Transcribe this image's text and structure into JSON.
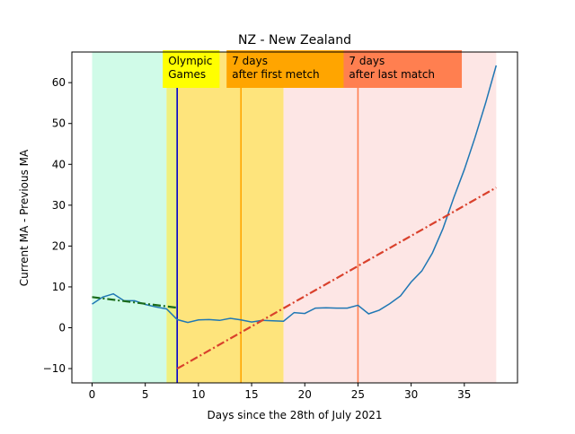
{
  "chart_data": {
    "type": "line",
    "title": "NZ - New Zealand",
    "xlabel": "Days since the 28th of July 2021",
    "ylabel": "Current MA - Previous MA",
    "xlim": [
      -1.9,
      40.0
    ],
    "ylim": [
      -13.5,
      67.5
    ],
    "xticks": [
      0,
      5,
      10,
      15,
      20,
      25,
      30,
      35
    ],
    "yticks": [
      -10,
      0,
      10,
      20,
      30,
      40,
      50,
      60
    ],
    "grid": false,
    "bands": [
      {
        "x0": 0,
        "x1": 7,
        "color": "#d0fbe8"
      },
      {
        "x0": 7,
        "x1": 8,
        "color": "#eef07f"
      },
      {
        "x0": 8,
        "x1": 18,
        "color": "#fee47c"
      },
      {
        "x0": 18,
        "x1": 38,
        "color": "#fde6e5"
      }
    ],
    "vlines": [
      {
        "x": 8,
        "color": "#0000cc"
      },
      {
        "x": 14,
        "color": "#ffa500"
      },
      {
        "x": 25,
        "color": "#ff7f50"
      }
    ],
    "annotations": [
      {
        "x": 8,
        "lines": [
          "Olympic",
          "Games"
        ],
        "color": "#ffff00"
      },
      {
        "x": 14,
        "lines": [
          "7 days",
          "after first metch"
        ],
        "color": "#ffa500"
      },
      {
        "x": 25,
        "lines": [
          "7 days",
          "after last match"
        ],
        "color": "#ff7f50"
      }
    ],
    "series": [
      {
        "style": "solid",
        "color": "#1f77b4",
        "x": [
          0,
          1,
          2,
          3,
          4,
          5,
          6,
          7,
          8,
          9,
          10,
          11,
          12,
          13,
          14,
          15,
          16,
          17,
          18,
          19,
          20,
          21,
          22,
          23,
          24,
          25,
          26,
          27,
          28,
          29,
          30,
          31,
          32,
          33,
          34,
          35,
          36,
          37,
          38
        ],
        "y": [
          5.8,
          7.5,
          8.3,
          6.6,
          6.6,
          5.7,
          5.1,
          4.6,
          2.0,
          1.3,
          1.9,
          2.0,
          1.8,
          2.3,
          1.9,
          1.4,
          1.8,
          1.7,
          1.6,
          3.7,
          3.5,
          4.8,
          4.9,
          4.8,
          4.8,
          5.5,
          3.4,
          4.3,
          5.9,
          7.8,
          11.2,
          13.9,
          18.3,
          24.3,
          31.8,
          38.7,
          46.5,
          55.0,
          64.2
        ]
      },
      {
        "style": "dashdot",
        "color": "#1a6b1a",
        "x": [
          0,
          8
        ],
        "y": [
          7.5,
          4.9
        ]
      },
      {
        "style": "dashdot",
        "color": "#d9412c",
        "x": [
          8,
          38
        ],
        "y": [
          -10.0,
          34.3
        ]
      }
    ]
  }
}
